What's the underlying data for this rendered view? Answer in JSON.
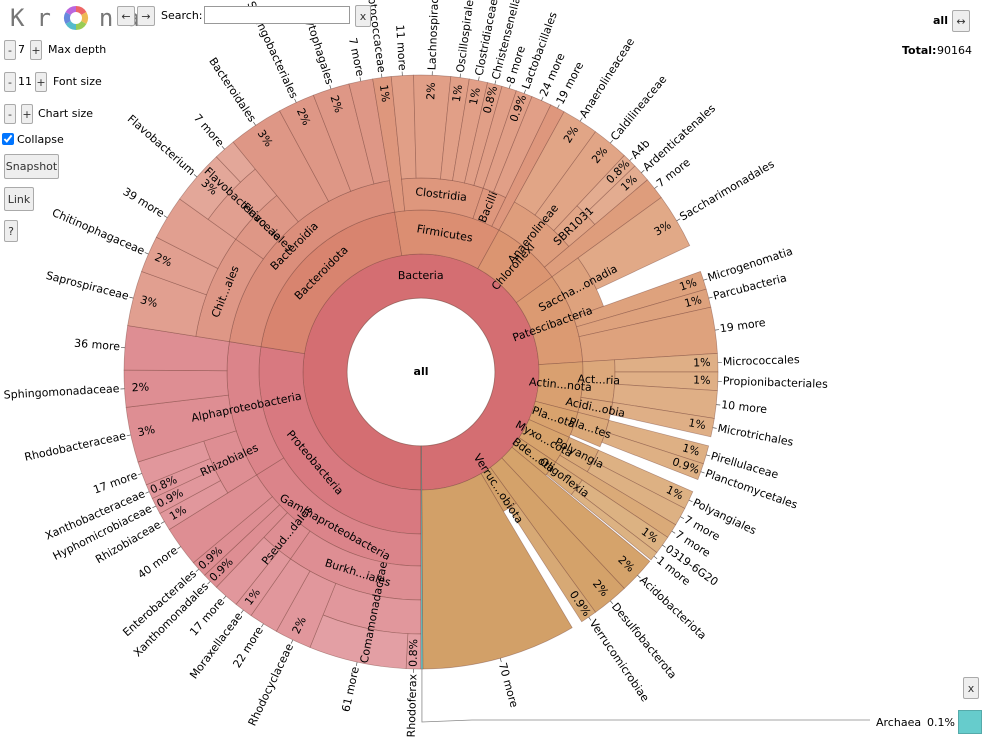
{
  "toolbar": {
    "logo_left": "Kr",
    "logo_right": "na",
    "back": "←",
    "forward": "→",
    "search_label": "Search:",
    "clear": "x",
    "minus": "-",
    "plus": "+",
    "max_depth": 7,
    "max_depth_label": "Max depth",
    "font_size": 11,
    "font_size_label": "Font size",
    "chart_size_label": "Chart size",
    "collapse_label": "Collapse",
    "snapshot": "Snapshot",
    "link": "Link",
    "help": "?"
  },
  "header": {
    "focus": "all",
    "swap": "↔",
    "total_label": "Total:",
    "total": 90164
  },
  "legend": {
    "close": "x"
  },
  "chart_data": {
    "type": "sunburst",
    "tree": {
      "name": "all",
      "value": 100,
      "children": [
        {
          "name": "Bacteria",
          "value": 99.9,
          "color": "#d46e72",
          "children": [
            {
              "name": "Proteobacteria",
              "value": 27.5,
              "color": "#d87980",
              "children": [
                {
                  "name": "Gammaproteobacteria",
                  "value": 16.1,
                  "children": [
                    {
                      "name": "Burkh...iales",
                      "value": 9.7,
                      "children": [
                        {
                          "name": "Comamonadaceae",
                          "value": 6.1,
                          "children": [
                            {
                              "name": "Rhodoferax",
                              "value": 0.8,
                              "value_label": "0.8%"
                            },
                            {
                              "name": "61 more",
                              "value": 5.3
                            }
                          ]
                        },
                        {
                          "name": "Rhodocyclaceae",
                          "value": 2,
                          "value_label": "2%"
                        },
                        {
                          "name": "22 more",
                          "value": 1.6
                        }
                      ]
                    },
                    {
                      "name": "Pseud...dales",
                      "value": 2.4,
                      "children": [
                        {
                          "name": "Moraxellaceae",
                          "value": 1,
                          "value_label": "1%"
                        },
                        {
                          "name": "17 more",
                          "value": 1.4
                        }
                      ]
                    },
                    {
                      "name": "Xanthomonadales",
                      "value": 0.9,
                      "value_label": "0.9%"
                    },
                    {
                      "name": "Enterobacterales",
                      "value": 0.9,
                      "value_label": "0.9%"
                    },
                    {
                      "name": "40 more",
                      "value": 2.2
                    }
                  ]
                },
                {
                  "name": "Alphaproteobacteria",
                  "value": 11.4,
                  "children": [
                    {
                      "name": "Rhizobiales",
                      "value": 4,
                      "children": [
                        {
                          "name": "Rhizobiaceae",
                          "value": 1,
                          "value_label": "1%"
                        },
                        {
                          "name": "Hyphomicrobiaceae",
                          "value": 0.9,
                          "value_label": "0.9%"
                        },
                        {
                          "name": "Xanthobacteraceae",
                          "value": 0.8,
                          "value_label": "0.8%"
                        },
                        {
                          "name": "17 more",
                          "value": 1.3
                        }
                      ]
                    },
                    {
                      "name": "Rhodobacteraceae",
                      "value": 3,
                      "value_label": "3%"
                    },
                    {
                      "name": "Sphingomonadaceae",
                      "value": 2,
                      "value_label": "2%"
                    },
                    {
                      "name": "36 more",
                      "value": 2.4
                    }
                  ]
                }
              ]
            },
            {
              "name": "Bacteroidota",
              "value": 19.9,
              "color": "#d8846f",
              "children": [
                {
                  "name": "Bacteroidia",
                  "value": 19.9,
                  "children": [
                    {
                      "name": "Chit...ales",
                      "value": 7.4,
                      "children": [
                        {
                          "name": "Saprospiraceae",
                          "value": 3,
                          "value_label": "3%"
                        },
                        {
                          "name": "Chitinophagaceae",
                          "value": 2,
                          "value_label": "2%"
                        },
                        {
                          "name": "39 more",
                          "value": 2.4
                        }
                      ]
                    },
                    {
                      "name": "Flavo...iales",
                      "value": 4.2,
                      "children": [
                        {
                          "name": "Flavobacteriaceae",
                          "value": 4.2,
                          "children": [
                            {
                              "name": "Flavobacterium",
                              "value": 3,
                              "value_label": "3%"
                            },
                            {
                              "name": "7 more",
                              "value": 1.2
                            }
                          ]
                        }
                      ]
                    },
                    {
                      "name": "Bacteroidales",
                      "value": 3,
                      "value_label": "3%"
                    },
                    {
                      "name": "Sphingobacteriales",
                      "value": 2,
                      "value_label": "2%"
                    },
                    {
                      "name": "Cytophagales",
                      "value": 2,
                      "value_label": "2%"
                    },
                    {
                      "name": "7 more",
                      "value": 1.3
                    }
                  ]
                }
              ]
            },
            {
              "name": "Firmicutes",
              "value": 10.6,
              "color": "#db8e72",
              "children": [
                {
                  "name": "Streptococcaceae",
                  "value": 1,
                  "value_label": "1%"
                },
                {
                  "name": "Clostridia",
                  "value": 6.8,
                  "children": [
                    {
                      "name": "11 more",
                      "value": 1.2
                    },
                    {
                      "name": "Lachnospiraceae",
                      "value": 2,
                      "value_label": "2%"
                    },
                    {
                      "name": "Oscillospirales",
                      "value": 1,
                      "value_label": "1%"
                    },
                    {
                      "name": "Clostridiaceae",
                      "value": 1,
                      "value_label": "1%"
                    },
                    {
                      "name": "Christensenellaceae",
                      "value": 0.8,
                      "value_label": "0.8%"
                    },
                    {
                      "name": "8 more",
                      "value": 0.8
                    }
                  ]
                },
                {
                  "name": "Bacilli",
                  "value": 2,
                  "children": [
                    {
                      "name": "Lactobacillales",
                      "value": 0.9,
                      "value_label": "0.9%"
                    },
                    {
                      "name": "24 more",
                      "value": 1.1
                    }
                  ]
                },
                {
                  "name": "19 more",
                  "value": 0.8
                }
              ]
            },
            {
              "name": "Chloroflexi",
              "value": 7,
              "color": "#db9571",
              "children": [
                {
                  "name": "Anaerolineae",
                  "value": 5.8,
                  "children": [
                    {
                      "name": "Anaerolineaceae",
                      "value": 2,
                      "value_label": "2%"
                    },
                    {
                      "name": "Caldilineaceae",
                      "value": 2,
                      "value_label": "2%"
                    },
                    {
                      "name": "SBR1031",
                      "value": 1.8,
                      "children": [
                        {
                          "name": "A4b",
                          "value": 0.8,
                          "value_label": "0.8%"
                        },
                        {
                          "name": "Ardenticatenales",
                          "value": 1,
                          "value_label": "1%"
                        }
                      ]
                    }
                  ]
                },
                {
                  "name": "7 more",
                  "value": 1.2
                }
              ]
            },
            {
              "name": "Patescibacteria",
              "value": 9,
              "color": "#db9a72",
              "children": [
                {
                  "name": "Saccha...onadia",
                  "value": 4.5,
                  "children": [
                    {
                      "name": "Saccharimonadales",
                      "value": 3,
                      "value_label": "3%"
                    }
                  ]
                },
                {
                  "name": "Microgenomatia",
                  "value": 1,
                  "value_label": "1%"
                },
                {
                  "name": "Parcubacteria",
                  "value": 1,
                  "value_label": "1%"
                },
                {
                  "name": "19 more",
                  "value": 2.5
                }
              ]
            },
            {
              "name": "Actin...nota",
              "value": 5,
              "color": "#d9a070",
              "children": [
                {
                  "name": "Act...ria",
                  "value": 3.5,
                  "children": [
                    {
                      "name": "Micrococcales",
                      "value": 1,
                      "value_label": "1%"
                    },
                    {
                      "name": "Propionibacteriales",
                      "value": 1,
                      "value_label": "1%"
                    },
                    {
                      "name": "10 more",
                      "value": 1.5
                    }
                  ]
                },
                {
                  "name": "Acidi...obia",
                  "value": 1.5,
                  "children": [
                    {
                      "name": "Microtrichales",
                      "value": 1,
                      "value_label": "1%"
                    }
                  ]
                }
              ]
            },
            {
              "name": "Pla...ota",
              "value": 2.6,
              "color": "#d8a26d",
              "children": [
                {
                  "name": "Pla...tes",
                  "value": 2.3,
                  "children": [
                    {
                      "name": "Pirellulaceae",
                      "value": 1,
                      "value_label": "1%"
                    },
                    {
                      "name": "Planctomycetales",
                      "value": 0.9,
                      "value_label": "0.9%"
                    }
                  ]
                }
              ]
            },
            {
              "name": "Myxo...cota",
              "value": 2.8,
              "color": "#d7a36c",
              "children": [
                {
                  "name": "Polyangia",
                  "value": 2,
                  "children": [
                    {
                      "name": "Polyangiales",
                      "value": 1,
                      "value_label": "1%"
                    },
                    {
                      "name": "7 more",
                      "value": 1
                    }
                  ]
                },
                {
                  "name": "7 more",
                  "value": 0.8
                }
              ]
            },
            {
              "name": "Bde...ota",
              "value": 1.6,
              "color": "#d6a46b",
              "children": [
                {
                  "name": "Oligoflexia",
                  "value": 1.5,
                  "children": [
                    {
                      "name": "0319-6G20",
                      "value": 1,
                      "value_label": "1%"
                    },
                    {
                      "name": "1 more",
                      "value": 0.5
                    }
                  ]
                }
              ]
            },
            {
              "name": "Acidobacteriota",
              "value": 2,
              "value_label": "2%",
              "color": "#d5a36b"
            },
            {
              "name": "Desulfobacterota",
              "value": 2,
              "value_label": "2%",
              "color": "#d4a26a"
            },
            {
              "name": "Verruc...obiota",
              "value": 1.5,
              "color": "#d3a169",
              "children": [
                {
                  "name": "Verrucomicrobiae",
                  "value": 0.9,
                  "value_label": "0.9%"
                }
              ]
            },
            {
              "name": "70 more",
              "value": 8.4,
              "color": "#d2a068"
            }
          ]
        },
        {
          "name": "Archaea",
          "value": 0.1,
          "value_label": "0.1%",
          "color": "#66cccc"
        }
      ]
    }
  }
}
